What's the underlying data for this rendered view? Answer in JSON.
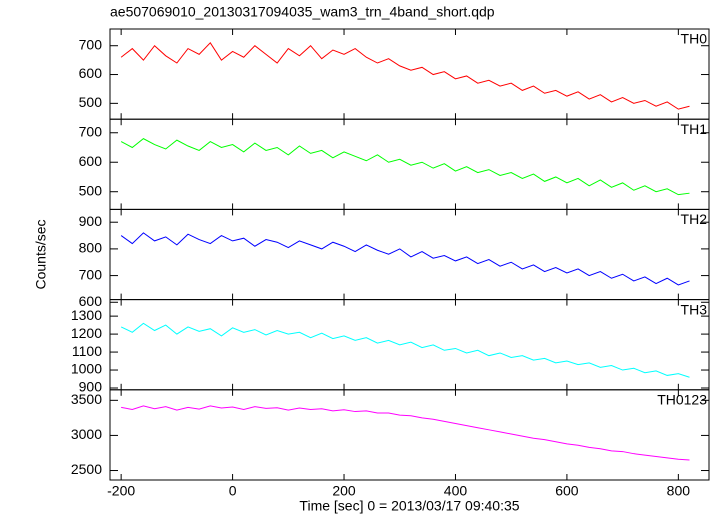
{
  "chart_data": [
    {
      "type": "line",
      "title": "ae507069010_20130317094035_wam3_trn_4band_short.qdp",
      "x": [
        -200,
        -180,
        -160,
        -140,
        -120,
        -100,
        -80,
        -60,
        -40,
        -20,
        0,
        20,
        40,
        60,
        80,
        100,
        120,
        140,
        160,
        180,
        200,
        220,
        240,
        260,
        280,
        300,
        320,
        340,
        360,
        380,
        400,
        420,
        440,
        460,
        480,
        500,
        520,
        540,
        560,
        580,
        600,
        620,
        640,
        660,
        680,
        700,
        720,
        740,
        760,
        780,
        800,
        820
      ],
      "series": [
        {
          "name": "TH0",
          "color": "#ff0000",
          "values": [
            660,
            690,
            650,
            700,
            665,
            640,
            690,
            670,
            710,
            650,
            680,
            660,
            700,
            670,
            640,
            690,
            665,
            700,
            655,
            685,
            670,
            690,
            660,
            640,
            655,
            630,
            615,
            625,
            600,
            610,
            585,
            595,
            570,
            580,
            560,
            570,
            545,
            560,
            535,
            545,
            525,
            540,
            515,
            530,
            505,
            520,
            500,
            510,
            490,
            505,
            480,
            490
          ]
        }
      ],
      "xlim": [
        -220,
        855
      ],
      "ylim": [
        445,
        758
      ],
      "yticks": [
        500,
        600,
        700
      ]
    },
    {
      "type": "line",
      "x": [
        -200,
        -180,
        -160,
        -140,
        -120,
        -100,
        -80,
        -60,
        -40,
        -20,
        0,
        20,
        40,
        60,
        80,
        100,
        120,
        140,
        160,
        180,
        200,
        220,
        240,
        260,
        280,
        300,
        320,
        340,
        360,
        380,
        400,
        420,
        440,
        460,
        480,
        500,
        520,
        540,
        560,
        580,
        600,
        620,
        640,
        660,
        680,
        700,
        720,
        740,
        760,
        780,
        800,
        820
      ],
      "series": [
        {
          "name": "TH1",
          "color": "#00ff00",
          "values": [
            670,
            650,
            680,
            660,
            645,
            675,
            655,
            640,
            670,
            650,
            660,
            635,
            665,
            640,
            650,
            625,
            655,
            630,
            640,
            615,
            635,
            620,
            605,
            625,
            600,
            610,
            590,
            600,
            580,
            595,
            570,
            585,
            565,
            575,
            555,
            565,
            545,
            560,
            535,
            550,
            530,
            545,
            520,
            540,
            515,
            530,
            505,
            520,
            500,
            510,
            490,
            495
          ]
        }
      ],
      "xlim": [
        -220,
        855
      ],
      "ylim": [
        440,
        746
      ],
      "yticks": [
        500,
        600,
        700
      ]
    },
    {
      "type": "line",
      "ylabel": "Counts/sec",
      "x": [
        -200,
        -180,
        -160,
        -140,
        -120,
        -100,
        -80,
        -60,
        -40,
        -20,
        0,
        20,
        40,
        60,
        80,
        100,
        120,
        140,
        160,
        180,
        200,
        220,
        240,
        260,
        280,
        300,
        320,
        340,
        360,
        380,
        400,
        420,
        440,
        460,
        480,
        500,
        520,
        540,
        560,
        580,
        600,
        620,
        640,
        660,
        680,
        700,
        720,
        740,
        760,
        780,
        800,
        820
      ],
      "series": [
        {
          "name": "TH2",
          "color": "#0000ff",
          "values": [
            850,
            820,
            860,
            830,
            845,
            815,
            855,
            835,
            820,
            850,
            830,
            840,
            810,
            835,
            825,
            805,
            830,
            815,
            800,
            825,
            810,
            790,
            815,
            795,
            780,
            800,
            770,
            790,
            765,
            775,
            755,
            770,
            745,
            760,
            735,
            750,
            725,
            740,
            715,
            730,
            710,
            725,
            700,
            715,
            690,
            705,
            680,
            695,
            670,
            690,
            665,
            680
          ]
        }
      ],
      "xlim": [
        -220,
        855
      ],
      "ylim": [
        610,
        948
      ],
      "yticks": [
        600,
        700,
        800,
        900
      ]
    },
    {
      "type": "line",
      "x": [
        -200,
        -180,
        -160,
        -140,
        -120,
        -100,
        -80,
        -60,
        -40,
        -20,
        0,
        20,
        40,
        60,
        80,
        100,
        120,
        140,
        160,
        180,
        200,
        220,
        240,
        260,
        280,
        300,
        320,
        340,
        360,
        380,
        400,
        420,
        440,
        460,
        480,
        500,
        520,
        540,
        560,
        580,
        600,
        620,
        640,
        660,
        680,
        700,
        720,
        740,
        760,
        780,
        800,
        820
      ],
      "series": [
        {
          "name": "TH3",
          "color": "#00ffff",
          "values": [
            1240,
            1210,
            1260,
            1220,
            1250,
            1200,
            1240,
            1215,
            1230,
            1190,
            1235,
            1210,
            1225,
            1195,
            1220,
            1200,
            1210,
            1180,
            1205,
            1175,
            1190,
            1165,
            1180,
            1150,
            1165,
            1140,
            1155,
            1125,
            1140,
            1110,
            1120,
            1095,
            1110,
            1080,
            1095,
            1070,
            1080,
            1055,
            1065,
            1040,
            1050,
            1030,
            1040,
            1015,
            1025,
            1000,
            1010,
            985,
            995,
            970,
            980,
            960
          ]
        }
      ],
      "xlim": [
        -220,
        855
      ],
      "ylim": [
        890,
        1392
      ],
      "yticks": [
        900,
        1000,
        1100,
        1200,
        1300
      ]
    },
    {
      "type": "line",
      "xlabel": "Time [sec] 0 = 2013/03/17 09:40:35",
      "x": [
        -200,
        -180,
        -160,
        -140,
        -120,
        -100,
        -80,
        -60,
        -40,
        -20,
        0,
        20,
        40,
        60,
        80,
        100,
        120,
        140,
        160,
        180,
        200,
        220,
        240,
        260,
        280,
        300,
        320,
        340,
        360,
        380,
        400,
        420,
        440,
        460,
        480,
        500,
        520,
        540,
        560,
        580,
        600,
        620,
        640,
        660,
        680,
        700,
        720,
        740,
        760,
        780,
        800,
        820
      ],
      "series": [
        {
          "name": "TH0123",
          "color": "#ff00ff",
          "values": [
            3400,
            3370,
            3420,
            3380,
            3410,
            3360,
            3400,
            3375,
            3420,
            3390,
            3405,
            3370,
            3410,
            3385,
            3395,
            3360,
            3390,
            3370,
            3380,
            3350,
            3365,
            3340,
            3350,
            3320,
            3320,
            3290,
            3280,
            3250,
            3230,
            3200,
            3170,
            3140,
            3110,
            3080,
            3050,
            3020,
            2990,
            2960,
            2940,
            2910,
            2880,
            2860,
            2830,
            2810,
            2780,
            2770,
            2740,
            2720,
            2700,
            2680,
            2660,
            2650
          ]
        }
      ],
      "xlim": [
        -220,
        855
      ],
      "ylim": [
        2365,
        3650
      ],
      "yticks": [
        2500,
        3000,
        3500
      ],
      "xticks": [
        -200,
        0,
        200,
        400,
        600,
        800
      ]
    }
  ]
}
